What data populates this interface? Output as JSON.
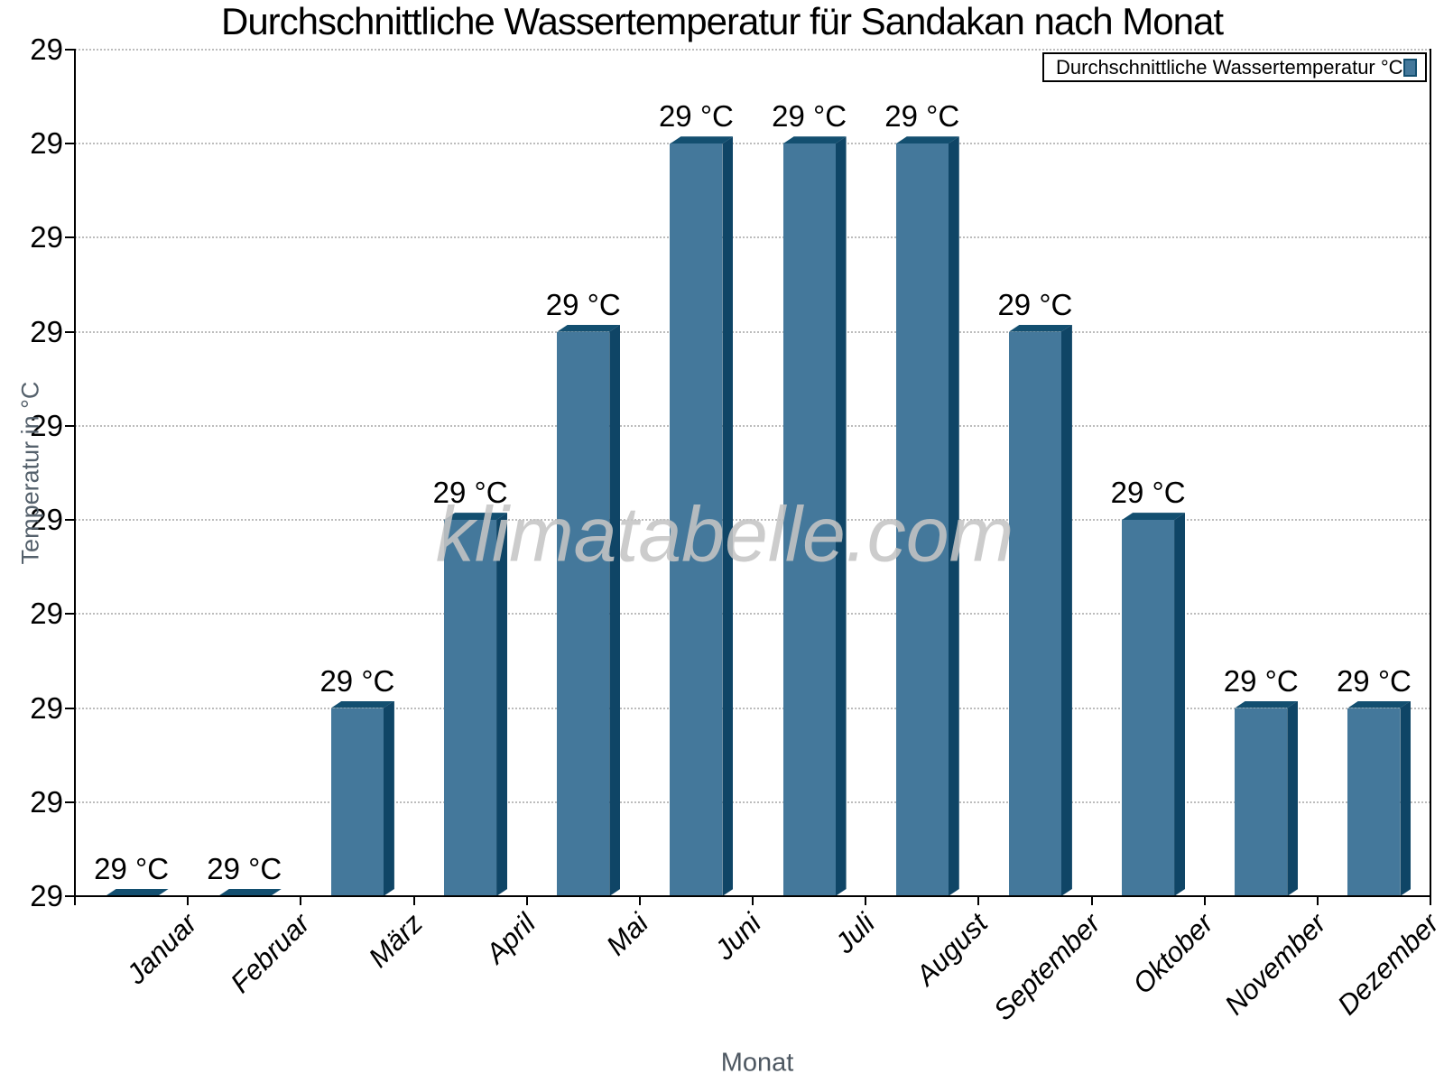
{
  "title": "Durchschnittliche Wassertemperatur für Sandakan nach Monat",
  "legend": {
    "label": "Durchschnittliche Wassertemperatur °C"
  },
  "watermark": "klimatabelle.com",
  "y_axis": {
    "label": "Temperatur in °C",
    "tick_label": "29"
  },
  "x_axis": {
    "label": "Monat"
  },
  "chart_data": {
    "type": "bar",
    "title": "Durchschnittliche Wassertemperatur für Sandakan nach Monat",
    "categories": [
      "Januar",
      "Februar",
      "März",
      "April",
      "Mai",
      "Juni",
      "Juli",
      "August",
      "September",
      "Oktober",
      "November",
      "Dezember"
    ],
    "values": [
      28.5,
      28.5,
      28.6,
      28.7,
      28.8,
      28.9,
      28.9,
      28.9,
      28.8,
      28.7,
      28.6,
      28.6
    ],
    "bar_value_labels": [
      "29 °C",
      "29 °C",
      "29 °C",
      "29 °C",
      "29 °C",
      "29 °C",
      "29 °C",
      "29 °C",
      "29 °C",
      "29 °C",
      "29 °C",
      "29 °C"
    ],
    "ylabel": "Temperatur in °C",
    "xlabel": "Monat",
    "ylim": [
      28.5,
      28.95
    ],
    "y_tick_labels": [
      "29",
      "29",
      "29",
      "29",
      "29",
      "29",
      "29",
      "29",
      "29",
      "29"
    ],
    "legend": [
      "Durchschnittliche Wassertemperatur °C"
    ],
    "legend_position": "top-right",
    "grid": "horizontal-dotted",
    "colors": {
      "bar_fill": "#44789B",
      "bar_side": "#0F4566",
      "bar_top": "#134F70",
      "grid": "#bcbcbc",
      "axis": "#000000",
      "muted_label": "#55616c",
      "watermark": "#c5c5c5"
    }
  }
}
